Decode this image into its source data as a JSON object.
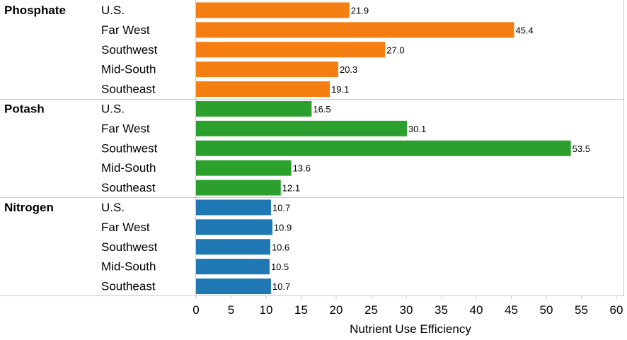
{
  "chart_data": {
    "type": "bar",
    "orientation": "horizontal",
    "xlabel": "Nutrient Use Efficiency",
    "xlim": [
      0,
      60
    ],
    "xticks": [
      0,
      5,
      10,
      15,
      20,
      25,
      30,
      35,
      40,
      45,
      50,
      55,
      60
    ],
    "grid": false,
    "groups": [
      {
        "name": "Phosphate",
        "color": "#f57e13",
        "categories": [
          "U.S.",
          "Far West",
          "Southwest",
          "Mid-South",
          "Southeast"
        ],
        "values": [
          21.9,
          45.4,
          27.0,
          20.3,
          19.1
        ],
        "labels": [
          "21.9",
          "45.4",
          "27.0",
          "20.3",
          "19.1"
        ]
      },
      {
        "name": "Potash",
        "color": "#2ca02c",
        "categories": [
          "U.S.",
          "Far West",
          "Southwest",
          "Mid-South",
          "Southeast"
        ],
        "values": [
          16.5,
          30.1,
          53.5,
          13.6,
          12.1
        ],
        "labels": [
          "16.5",
          "30.1",
          "53.5",
          "13.6",
          "12.1"
        ]
      },
      {
        "name": "Nitrogen",
        "color": "#1f77b4",
        "categories": [
          "U.S.",
          "Far West",
          "Southwest",
          "Mid-South",
          "Southeast"
        ],
        "values": [
          10.7,
          10.9,
          10.6,
          10.5,
          10.7
        ],
        "labels": [
          "10.7",
          "10.9",
          "10.6",
          "10.5",
          "10.7"
        ]
      }
    ]
  }
}
